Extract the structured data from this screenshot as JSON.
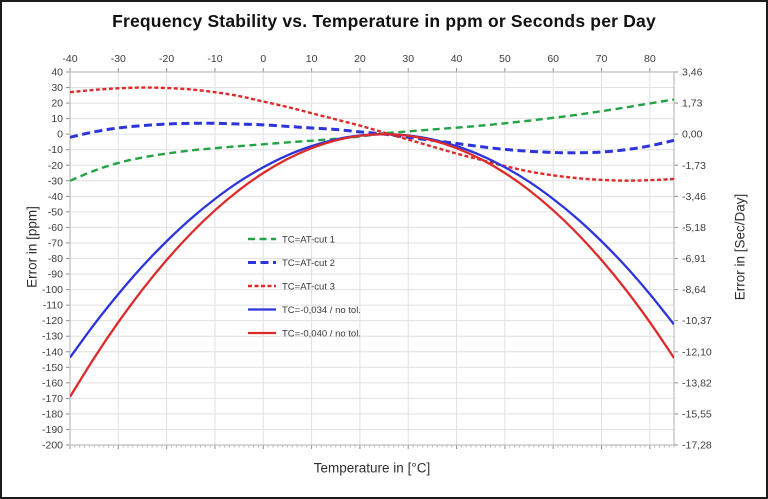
{
  "chart": {
    "title": "Frequency Stability vs. Temperature in ppm or Seconds per Day",
    "left_axis_title": "Error in [ppm]",
    "right_axis_title": "Error in [Sec/Day]",
    "bottom_axis_title": "Temperature in [°C]"
  },
  "chart_data": {
    "type": "line",
    "title": "Frequency Stability vs. Temperature in ppm or Seconds per Day",
    "xlabel": "Temperature in [°C]",
    "ylabel_left": "Error in [ppm]",
    "ylabel_right": "Error in [Sec/Day]",
    "x_range": [
      -40,
      85
    ],
    "y_range_ppm": [
      -200,
      40
    ],
    "grid": true,
    "legend_position": "inside-center-left",
    "top_axis_tick_labels": [
      "-40",
      "-30",
      "-20",
      "-10",
      "0",
      "10",
      "20",
      "30",
      "40",
      "50",
      "60",
      "70",
      "80"
    ],
    "left_axis_tick_labels": [
      "40",
      "30",
      "20",
      "10",
      "0",
      "-10",
      "-20",
      "-30",
      "-40",
      "-50",
      "-60",
      "-70",
      "-80",
      "-90",
      "-100",
      "-110",
      "-120",
      "-130",
      "-140",
      "-150",
      "-160",
      "-170",
      "-180",
      "-190",
      "-200"
    ],
    "right_axis_ticks": {
      "labels": [
        "3,46",
        "1,73",
        "0,00",
        "-1,73",
        "-3,46",
        "-5,18",
        "-6,91",
        "-8,64",
        "-10,37",
        "-12,10",
        "-13,82",
        "-15,55",
        "-17,28"
      ],
      "values_ppm": [
        40,
        20,
        0,
        -20,
        -40,
        -60,
        -80,
        -100,
        -120,
        -140,
        -160,
        -180,
        -200
      ]
    },
    "x": [
      -40,
      -35,
      -30,
      -25,
      -20,
      -15,
      -10,
      -5,
      0,
      5,
      10,
      15,
      20,
      25,
      30,
      35,
      40,
      45,
      50,
      55,
      60,
      65,
      70,
      75,
      80,
      85
    ],
    "series": [
      {
        "name": "TC=AT-cut 1",
        "color": "#22a345",
        "line": "dashed",
        "dash": [
          7,
          4.5
        ],
        "width": 2.4,
        "values": [
          -30,
          -23.5,
          -18.5,
          -15,
          -12.5,
          -10.5,
          -9,
          -7.7,
          -6.5,
          -5.3,
          -4.2,
          -3,
          -1.5,
          0.5,
          1.8,
          3,
          4.2,
          5.5,
          7,
          8.7,
          10.5,
          12.5,
          14.8,
          17.2,
          19.8,
          22.3
        ]
      },
      {
        "name": "TC=AT-cut 2",
        "color": "#2b35db",
        "line": "dashed",
        "dash": [
          8,
          4.5
        ],
        "width": 3,
        "values": [
          -2,
          1.5,
          4,
          5.5,
          6.5,
          7,
          7,
          6.5,
          6,
          5,
          4,
          3,
          1.5,
          0,
          -2,
          -4,
          -6,
          -8,
          -9.8,
          -11,
          -11.8,
          -12,
          -11.5,
          -10,
          -7.5,
          -4
        ]
      },
      {
        "name": "TC=AT-cut 3",
        "color": "#dd2b2b",
        "line": "dashed",
        "dash": [
          4,
          2.5
        ],
        "width": 2.4,
        "values": [
          27,
          28.5,
          29.5,
          30,
          29.7,
          28.8,
          27,
          24.5,
          21,
          17.5,
          13.5,
          9.5,
          5.5,
          1,
          -3.5,
          -8,
          -12.5,
          -16.5,
          -20.5,
          -24,
          -26.5,
          -28.3,
          -29.4,
          -29.9,
          -29.6,
          -28.8
        ]
      },
      {
        "name": "TC=-0,034 / no tol.",
        "color": "#2b35db",
        "line": "solid",
        "dash": null,
        "width": 2.3,
        "values": [
          -143.7,
          -122.4,
          -102.9,
          -85,
          -68.9,
          -54.4,
          -41.7,
          -30.6,
          -21.3,
          -13.6,
          -7.7,
          -3.4,
          -0.9,
          0,
          -0.9,
          -3.4,
          -7.7,
          -13.6,
          -21.3,
          -30.6,
          -41.7,
          -54.4,
          -68.9,
          -85,
          -102.9,
          -122.4
        ]
      },
      {
        "name": "TC=-0,040 / no tol.",
        "color": "#dd2b2b",
        "line": "solid",
        "dash": null,
        "width": 2.3,
        "values": [
          -169,
          -144,
          -121,
          -100,
          -81,
          -64,
          -49,
          -36,
          -25,
          -16,
          -9,
          -4,
          -1,
          0,
          -1,
          -4,
          -9,
          -16,
          -25,
          -36,
          -49,
          -64,
          -81,
          -100,
          -121,
          -144
        ]
      }
    ]
  }
}
